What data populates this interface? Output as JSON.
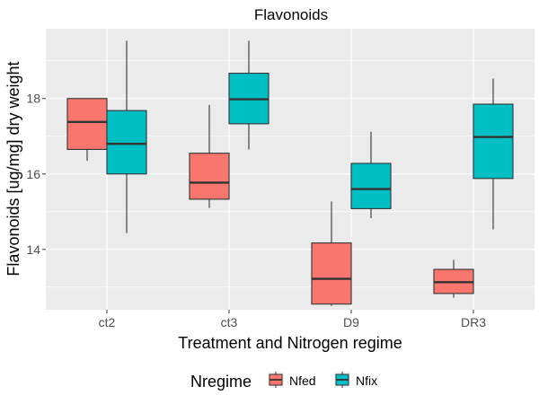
{
  "chart_data": {
    "type": "box",
    "title": "Flavonoids",
    "xlabel": "Treatment and Nitrogen regime",
    "ylabel": "Flavonoids [ug/mg] dry weight",
    "categories": [
      "ct2",
      "ct3",
      "D9",
      "DR3"
    ],
    "y_ticks": [
      14,
      16,
      18
    ],
    "ylim": [
      12.4,
      19.85
    ],
    "grid": true,
    "legend": {
      "title": "Nregime",
      "placement": "bottom",
      "entries": [
        "Nfed",
        "Nfix"
      ]
    },
    "series": [
      {
        "name": "Nfed",
        "color": "#F8766D",
        "boxes": [
          {
            "category": "ct2",
            "min": 16.35,
            "q1": 16.65,
            "median": 17.38,
            "q3": 18.0,
            "max": 18.0
          },
          {
            "category": "ct3",
            "min": 15.1,
            "q1": 15.33,
            "median": 15.77,
            "q3": 16.55,
            "max": 17.83
          },
          {
            "category": "D9",
            "min": 12.5,
            "q1": 12.55,
            "median": 13.22,
            "q3": 14.17,
            "max": 15.27
          },
          {
            "category": "DR3",
            "min": 12.72,
            "q1": 12.83,
            "median": 13.13,
            "q3": 13.47,
            "max": 13.72
          }
        ]
      },
      {
        "name": "Nfix",
        "color": "#00BFC4",
        "boxes": [
          {
            "category": "ct2",
            "min": 14.43,
            "q1": 16.0,
            "median": 16.8,
            "q3": 17.68,
            "max": 19.53
          },
          {
            "category": "ct3",
            "min": 16.65,
            "q1": 17.33,
            "median": 17.98,
            "q3": 18.67,
            "max": 19.53
          },
          {
            "category": "D9",
            "min": 14.83,
            "q1": 15.08,
            "median": 15.6,
            "q3": 16.28,
            "max": 17.12
          },
          {
            "category": "DR3",
            "min": 14.53,
            "q1": 15.88,
            "median": 16.98,
            "q3": 17.85,
            "max": 18.53
          }
        ]
      }
    ]
  }
}
